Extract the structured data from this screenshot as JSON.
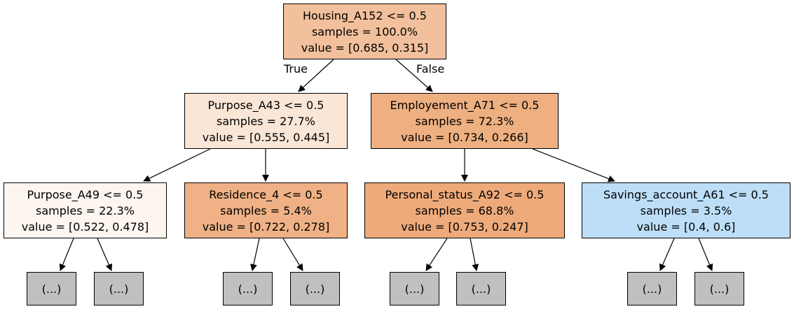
{
  "edge_labels": {
    "true": "True",
    "false": "False"
  },
  "nodes": {
    "root": {
      "condition": "Housing_A152 <= 0.5",
      "samples": "samples = 100.0%",
      "value": "value = [0.685, 0.315]",
      "fill": "#f2c09c"
    },
    "l": {
      "condition": "Purpose_A43 <= 0.5",
      "samples": "samples = 27.7%",
      "value": "value = [0.555, 0.445]",
      "fill": "#fae6d7"
    },
    "r": {
      "condition": "Employement_A71 <= 0.5",
      "samples": "samples = 72.3%",
      "value": "value = [0.734, 0.266]",
      "fill": "#eeaf81"
    },
    "ll": {
      "condition": "Purpose_A49 <= 0.5",
      "samples": "samples = 22.3%",
      "value": "value = [0.522, 0.478]",
      "fill": "#fdf5ef"
    },
    "lr": {
      "condition": "Residence_4 <= 0.5",
      "samples": "samples = 5.4%",
      "value": "value = [0.722, 0.278]",
      "fill": "#efb185"
    },
    "rl": {
      "condition": "Personal_status_A92 <= 0.5",
      "samples": "samples = 68.8%",
      "value": "value = [0.753, 0.247]",
      "fill": "#eeaa7a"
    },
    "rr": {
      "condition": "Savings_account_A61 <= 0.5",
      "samples": "samples = 3.5%",
      "value": "value = [0.4, 0.6]",
      "fill": "#bddef6"
    }
  },
  "truncated_label": "(...)"
}
